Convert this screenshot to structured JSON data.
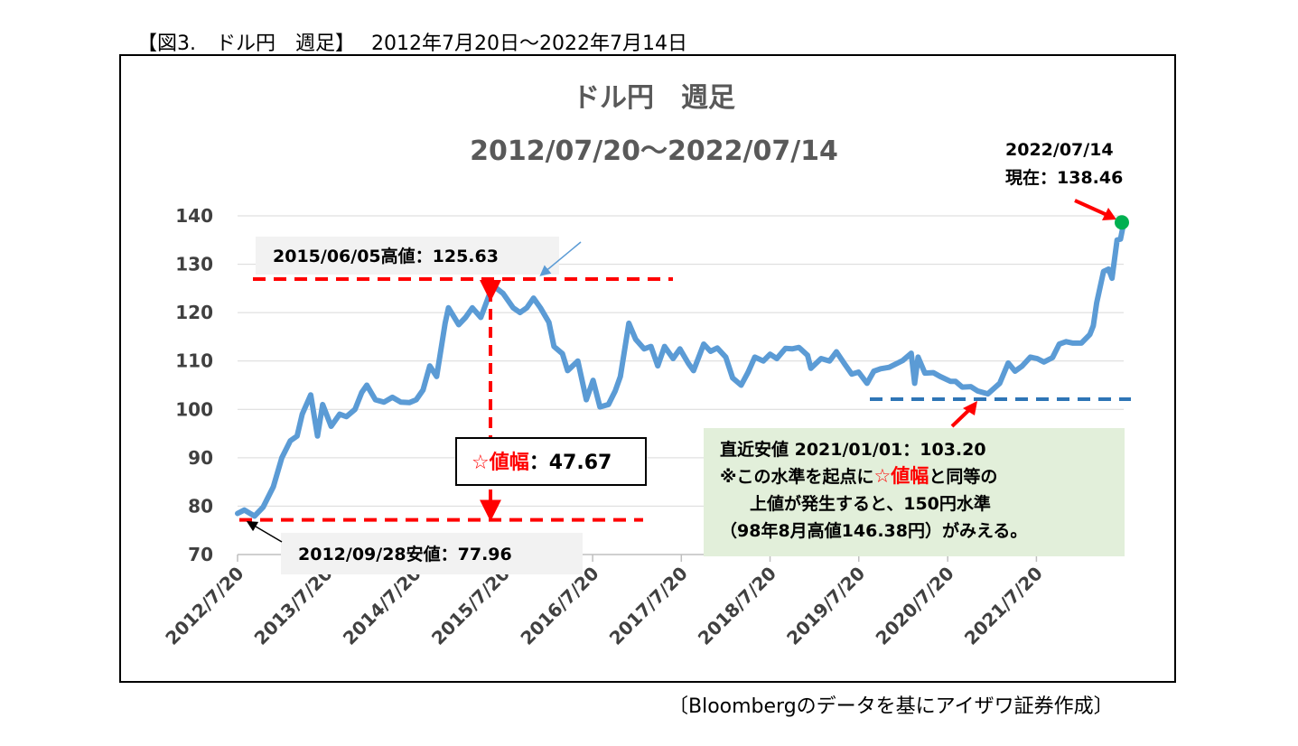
{
  "header": {
    "caption": "【図3.　ドル円　週足】　 2012年7月20日～2022年7月14日",
    "source": "〔Bloombergのデータを基にアイザワ証券作成〕"
  },
  "colors": {
    "series": "#5b9bd5",
    "high_low_lines": "#ff0000",
    "recent_low_line": "#2e75b6",
    "current_point": "#00b050",
    "annotation_bg": "#f2f2f2",
    "note_bg": "#e2efda"
  },
  "chart_data": {
    "type": "line",
    "title": "ドル円　週足",
    "subtitle": "2012/07/20～2022/07/14",
    "ylim": [
      70,
      140
    ],
    "yticks": [
      70,
      80,
      90,
      100,
      110,
      120,
      130,
      140
    ],
    "xlim": [
      "2012-07-20",
      "2022-07-14"
    ],
    "xticks": [
      "2012/7/20",
      "2013/7/20",
      "2014/7/20",
      "2015/7/20",
      "2016/7/20",
      "2017/7/20",
      "2018/7/20",
      "2019/7/20",
      "2020/7/20",
      "2021/7/20"
    ],
    "series": [
      {
        "points": [
          [
            "2012-07-20",
            78.5
          ],
          [
            "2012-08-17",
            79.2
          ],
          [
            "2012-09-28",
            77.96
          ],
          [
            "2012-11-02",
            79.8
          ],
          [
            "2012-12-14",
            84.0
          ],
          [
            "2013-01-18",
            90.0
          ],
          [
            "2013-02-22",
            93.5
          ],
          [
            "2013-03-22",
            94.5
          ],
          [
            "2013-04-12",
            99.0
          ],
          [
            "2013-05-17",
            103.0
          ],
          [
            "2013-06-14",
            94.5
          ],
          [
            "2013-07-05",
            101.0
          ],
          [
            "2013-08-09",
            96.5
          ],
          [
            "2013-09-13",
            99.0
          ],
          [
            "2013-10-11",
            98.5
          ],
          [
            "2013-11-15",
            100.0
          ],
          [
            "2013-12-13",
            103.5
          ],
          [
            "2014-01-03",
            105.0
          ],
          [
            "2014-02-07",
            102.0
          ],
          [
            "2014-03-14",
            101.5
          ],
          [
            "2014-04-18",
            102.5
          ],
          [
            "2014-05-23",
            101.5
          ],
          [
            "2014-06-27",
            101.4
          ],
          [
            "2014-07-25",
            102.0
          ],
          [
            "2014-08-22",
            104.0
          ],
          [
            "2014-09-19",
            109.0
          ],
          [
            "2014-10-17",
            106.8
          ],
          [
            "2014-11-21",
            117.8
          ],
          [
            "2014-12-05",
            121.0
          ],
          [
            "2015-01-16",
            117.5
          ],
          [
            "2015-02-13",
            119.0
          ],
          [
            "2015-03-13",
            121.0
          ],
          [
            "2015-04-17",
            119.0
          ],
          [
            "2015-06-05",
            125.63
          ],
          [
            "2015-07-17",
            124.0
          ],
          [
            "2015-08-28",
            121.0
          ],
          [
            "2015-09-25",
            120.0
          ],
          [
            "2015-10-23",
            121.0
          ],
          [
            "2015-11-20",
            123.0
          ],
          [
            "2015-12-18",
            121.0
          ],
          [
            "2016-01-22",
            118.0
          ],
          [
            "2016-02-12",
            113.0
          ],
          [
            "2016-03-18",
            111.5
          ],
          [
            "2016-04-08",
            108.0
          ],
          [
            "2016-05-20",
            110.0
          ],
          [
            "2016-06-24",
            102.0
          ],
          [
            "2016-07-22",
            106.0
          ],
          [
            "2016-08-19",
            100.5
          ],
          [
            "2016-09-23",
            101.0
          ],
          [
            "2016-10-21",
            103.8
          ],
          [
            "2016-11-11",
            106.8
          ],
          [
            "2016-12-16",
            117.8
          ],
          [
            "2017-01-13",
            114.5
          ],
          [
            "2017-02-17",
            112.5
          ],
          [
            "2017-03-17",
            113.0
          ],
          [
            "2017-04-14",
            109.0
          ],
          [
            "2017-05-12",
            113.0
          ],
          [
            "2017-06-16",
            110.5
          ],
          [
            "2017-07-14",
            112.5
          ],
          [
            "2017-08-18",
            109.5
          ],
          [
            "2017-09-08",
            108.0
          ],
          [
            "2017-10-20",
            113.5
          ],
          [
            "2017-11-17",
            112.0
          ],
          [
            "2017-12-15",
            112.7
          ],
          [
            "2018-01-19",
            110.8
          ],
          [
            "2018-02-16",
            106.5
          ],
          [
            "2018-03-23",
            105.0
          ],
          [
            "2018-04-20",
            107.6
          ],
          [
            "2018-05-18",
            110.8
          ],
          [
            "2018-06-22",
            110.0
          ],
          [
            "2018-07-20",
            111.4
          ],
          [
            "2018-08-17",
            110.5
          ],
          [
            "2018-09-21",
            112.6
          ],
          [
            "2018-10-19",
            112.5
          ],
          [
            "2018-11-16",
            112.8
          ],
          [
            "2018-12-21",
            111.2
          ],
          [
            "2019-01-04",
            108.5
          ],
          [
            "2019-02-15",
            110.5
          ],
          [
            "2019-03-22",
            110.0
          ],
          [
            "2019-04-19",
            111.9
          ],
          [
            "2019-05-24",
            109.3
          ],
          [
            "2019-06-21",
            107.3
          ],
          [
            "2019-07-19",
            107.7
          ],
          [
            "2019-08-23",
            105.4
          ],
          [
            "2019-09-20",
            107.9
          ],
          [
            "2019-10-18",
            108.4
          ],
          [
            "2019-11-22",
            108.7
          ],
          [
            "2019-12-20",
            109.4
          ],
          [
            "2020-01-17",
            110.1
          ],
          [
            "2020-02-21",
            111.6
          ],
          [
            "2020-03-06",
            105.4
          ],
          [
            "2020-03-20",
            110.8
          ],
          [
            "2020-04-17",
            107.5
          ],
          [
            "2020-05-22",
            107.6
          ],
          [
            "2020-06-19",
            106.8
          ],
          [
            "2020-07-31",
            105.8
          ],
          [
            "2020-08-21",
            105.8
          ],
          [
            "2020-09-18",
            104.6
          ],
          [
            "2020-10-23",
            104.7
          ],
          [
            "2020-11-20",
            103.8
          ],
          [
            "2021-01-01",
            103.2
          ],
          [
            "2021-02-19",
            105.4
          ],
          [
            "2021-03-26",
            109.6
          ],
          [
            "2021-04-23",
            107.9
          ],
          [
            "2021-05-21",
            108.9
          ],
          [
            "2021-06-25",
            110.8
          ],
          [
            "2021-07-23",
            110.5
          ],
          [
            "2021-08-20",
            109.8
          ],
          [
            "2021-09-24",
            110.7
          ],
          [
            "2021-10-22",
            113.5
          ],
          [
            "2021-11-19",
            114.0
          ],
          [
            "2021-12-17",
            113.7
          ],
          [
            "2022-01-21",
            113.7
          ],
          [
            "2022-02-25",
            115.5
          ],
          [
            "2022-03-11",
            117.3
          ],
          [
            "2022-03-25",
            122.0
          ],
          [
            "2022-04-22",
            128.5
          ],
          [
            "2022-05-13",
            129.0
          ],
          [
            "2022-05-27",
            127.1
          ],
          [
            "2022-06-17",
            135.0
          ],
          [
            "2022-07-01",
            135.2
          ],
          [
            "2022-07-14",
            138.46
          ]
        ]
      }
    ],
    "annotations": {
      "high": {
        "date": "2015-06-05",
        "value": 125.63,
        "label": "2015/06/05高値：125.63"
      },
      "low": {
        "date": "2012-09-28",
        "value": 77.96,
        "label": "2012/09/28安値：77.96"
      },
      "current": {
        "date_label": "2022/07/14",
        "value_label": "現在：138.46",
        "date": "2022-07-14",
        "value": 138.46
      },
      "range": {
        "star": "☆値幅",
        "rest": "：47.67",
        "value": 47.67
      },
      "recent_low": {
        "date": "2021-01-01",
        "value": 103.2,
        "line1": "直近安値 2021/01/01：103.20",
        "line2_a": "※この水準を起点に",
        "line2_b": "☆値幅",
        "line2_c": "と同等の",
        "line3": "上値が発生すると、150円水準",
        "line4": "（98年8月高値146.38円）がみえる。"
      }
    },
    "grid": true,
    "legend": "none"
  }
}
